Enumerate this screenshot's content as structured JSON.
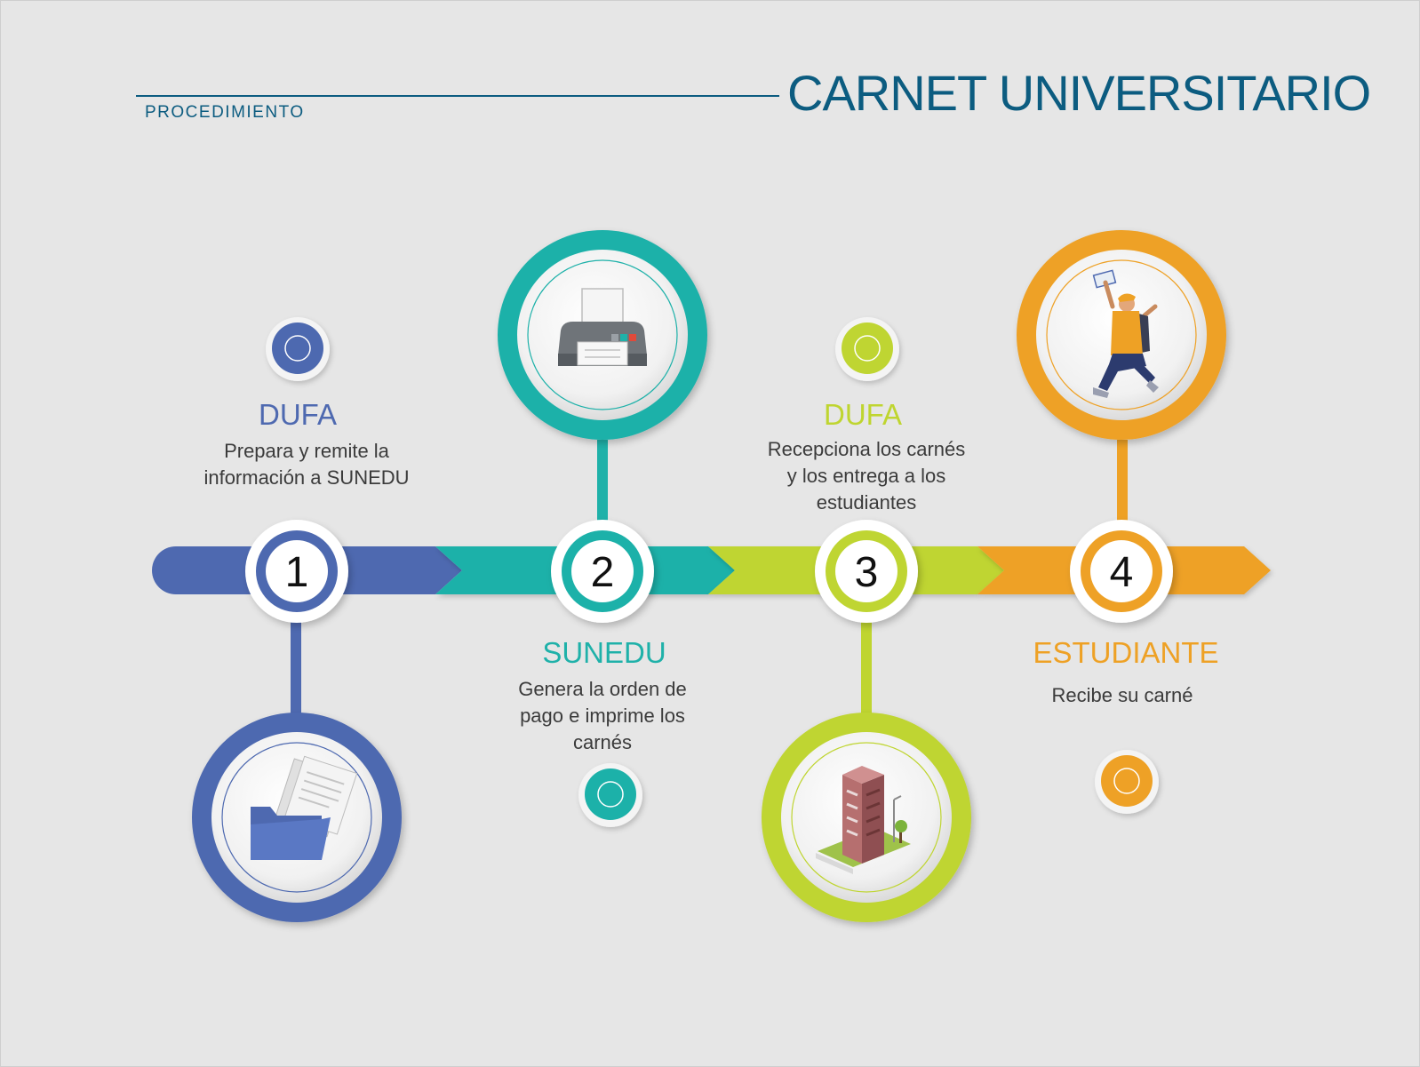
{
  "header": {
    "subtitle": "PROCEDIMIENTO",
    "title": "CARNET UNIVERSITARIO"
  },
  "colors": {
    "blue": "#4e69b0",
    "teal": "#1fb1a9",
    "lime": "#bfd530",
    "orange": "#eea125",
    "title": "#0c5c80"
  },
  "steps": [
    {
      "number": "1",
      "actor": "DUFA",
      "description": "Prepara y remite la\ninformación a SUNEDU",
      "color": "#4e69b0",
      "icon": "folder-icon"
    },
    {
      "number": "2",
      "actor": "SUNEDU",
      "description": "Genera la orden de\npago e imprime los\ncarnés",
      "color": "#1fb1a9",
      "icon": "printer-icon"
    },
    {
      "number": "3",
      "actor": "DUFA",
      "description": "Recepciona los carnés\ny los entrega a los\nestudiantes",
      "color": "#bfd530",
      "icon": "building-icon"
    },
    {
      "number": "4",
      "actor": "ESTUDIANTE",
      "description": "Recibe su carné",
      "color": "#eea125",
      "icon": "jumping-student-icon"
    }
  ]
}
